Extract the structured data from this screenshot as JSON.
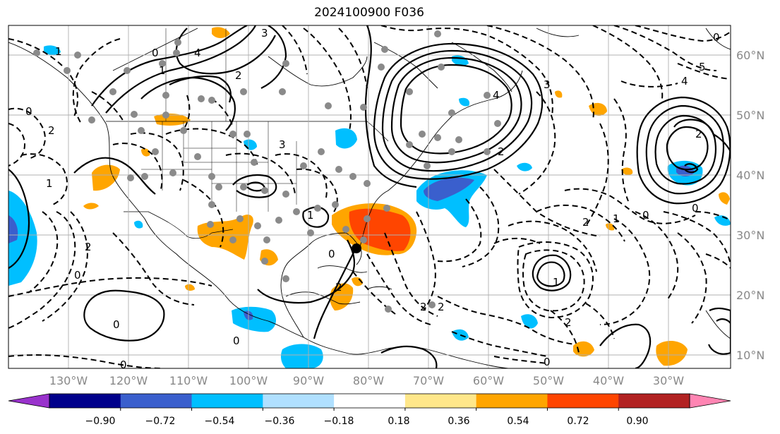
{
  "title": "2024100900 F036",
  "map": {
    "lon_labels": [
      "130°W",
      "120°W",
      "110°W",
      "100°W",
      "90°W",
      "80°W",
      "70°W",
      "60°W",
      "50°W",
      "40°W",
      "30°W"
    ],
    "lat_labels": [
      "60°N",
      "50°N",
      "40°N",
      "30°N",
      "20°N",
      "10°N"
    ],
    "contour_labels": [
      "0",
      "1",
      "4",
      "2",
      "3",
      "0",
      "1",
      "2",
      "3",
      "2",
      "0",
      "1",
      "2",
      "4",
      "3",
      "5",
      "4",
      "0",
      "2",
      "0",
      "2",
      "0",
      "0",
      "1",
      "0",
      "1",
      "2",
      "0",
      "2",
      "0",
      "2",
      "2",
      "0",
      "1"
    ]
  },
  "colorbar": {
    "colors": [
      "#9932cc",
      "#00008b",
      "#3a5fcd",
      "#00bfff",
      "#b0e0ff",
      "#ffffff",
      "#ffe78a",
      "#ffa500",
      "#ff4500",
      "#b22222",
      "#ff85b3"
    ],
    "tick_labels": [
      "−0.90",
      "−0.72",
      "−0.54",
      "−0.36",
      "−0.18",
      "0.18",
      "0.36",
      "0.54",
      "0.72",
      "0.90"
    ]
  }
}
